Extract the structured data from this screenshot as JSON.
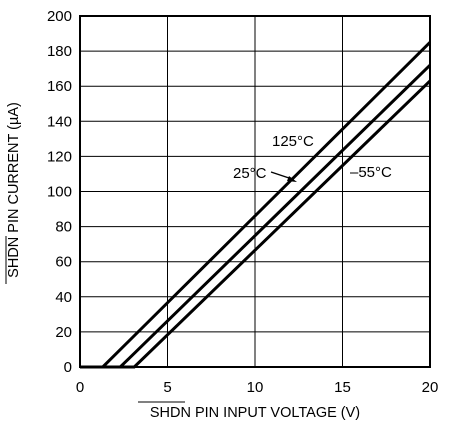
{
  "chart_data": {
    "type": "line",
    "xlabel_overbar": "SHDN",
    "xlabel_rest": " PIN INPUT VOLTAGE (V)",
    "ylabel_overbar": "SHDN",
    "ylabel_rest": " PIN CURRENT (µA)",
    "xlim": [
      0,
      20
    ],
    "ylim": [
      0,
      200
    ],
    "xticks": [
      0,
      5,
      10,
      15,
      20
    ],
    "yticks": [
      0,
      20,
      40,
      60,
      80,
      100,
      120,
      140,
      160,
      180,
      200
    ],
    "grid": true,
    "series": [
      {
        "name": "125°C",
        "x": [
          0,
          1.3,
          20
        ],
        "y": [
          0,
          0,
          185
        ]
      },
      {
        "name": "25°C",
        "x": [
          0,
          2.3,
          20
        ],
        "y": [
          0,
          0,
          172
        ]
      },
      {
        "name": "–55°C",
        "x": [
          0,
          3.1,
          20
        ],
        "y": [
          0,
          0,
          163
        ]
      }
    ],
    "annotations": [
      {
        "text": "125°C"
      },
      {
        "text": "25°C"
      },
      {
        "text": "–55°C"
      }
    ]
  }
}
